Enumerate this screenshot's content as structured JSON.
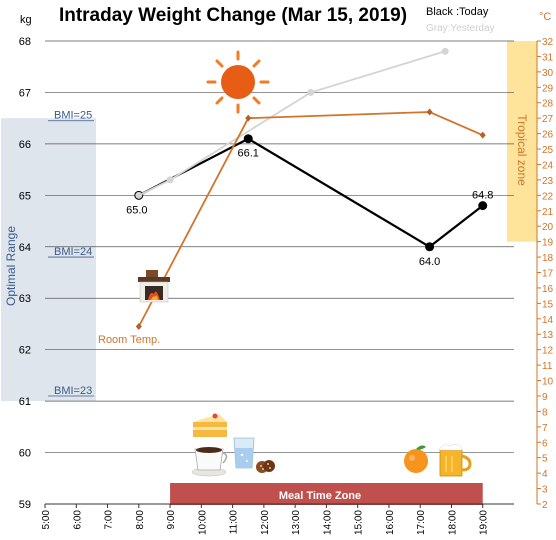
{
  "chart_data": {
    "type": "line",
    "title": "Intraday Weight Change (Mar 15, 2019)",
    "legend": {
      "today": "Black :Today",
      "yesterday": "Gray:Yesterday",
      "placement": "top-right"
    },
    "left_axis": {
      "unit": "kg",
      "range": [
        59,
        68
      ],
      "ticks": [
        "59",
        "60",
        "61",
        "62",
        "63",
        "64",
        "65",
        "66",
        "67",
        "68"
      ]
    },
    "right_axis": {
      "unit": "°C",
      "range": [
        2,
        32
      ],
      "ticks": [
        "2",
        "3",
        "4",
        "5",
        "6",
        "7",
        "8",
        "9",
        "10",
        "11",
        "12",
        "13",
        "14",
        "15",
        "16",
        "17",
        "18",
        "19",
        "20",
        "21",
        "22",
        "23",
        "24",
        "25",
        "26",
        "27",
        "28",
        "29",
        "30",
        "31",
        "32"
      ]
    },
    "x_axis": {
      "range": [
        5,
        20
      ],
      "ticks": [
        {
          "label": "5:00",
          "value": 5
        },
        {
          "label": "6:00",
          "value": 6
        },
        {
          "label": "7:00",
          "value": 7
        },
        {
          "label": "8:00",
          "value": 8
        },
        {
          "label": "9:00",
          "value": 9
        },
        {
          "label": "10:00",
          "value": 10
        },
        {
          "label": "11:00",
          "value": 11
        },
        {
          "label": "12:00",
          "value": 12
        },
        {
          "label": "13:00",
          "value": 13
        },
        {
          "label": "14:00",
          "value": 14
        },
        {
          "label": "15:00",
          "value": 15
        },
        {
          "label": "16:00",
          "value": 16
        },
        {
          "label": "17:00",
          "value": 17
        },
        {
          "label": "18:00",
          "value": 18
        },
        {
          "label": "19:00",
          "value": 19
        }
      ]
    },
    "grid": true,
    "series": [
      {
        "name": "Today",
        "axis": "left",
        "color": "#000000",
        "points": [
          {
            "x": 8.0,
            "y": 65.0,
            "label": "65.0"
          },
          {
            "x": 11.5,
            "y": 66.1,
            "label": "66.1"
          },
          {
            "x": 17.3,
            "y": 64.0,
            "label": "64.0"
          },
          {
            "x": 19.0,
            "y": 64.8,
            "label": "64.8"
          }
        ]
      },
      {
        "name": "Yesterday",
        "axis": "left",
        "color": "#d4d4d4",
        "points": [
          {
            "x": 8.0,
            "y": 65.0
          },
          {
            "x": 9.0,
            "y": 65.3
          },
          {
            "x": 13.5,
            "y": 67.0
          },
          {
            "x": 17.8,
            "y": 67.8
          }
        ]
      },
      {
        "name": "Room Temp.",
        "axis": "right",
        "color": "#d2742a",
        "points": [
          {
            "x": 8.0,
            "y": 13.5
          },
          {
            "x": 11.5,
            "y": 27.0
          },
          {
            "x": 17.3,
            "y": 27.4
          },
          {
            "x": 19.0,
            "y": 25.9
          }
        ]
      }
    ],
    "annotations": {
      "room_temp_label": "Room Temp.",
      "optimal_range": {
        "label": "Optimal Range",
        "y_range": [
          61,
          66.5
        ],
        "color": "#dfe5ec"
      },
      "bmi_lines": [
        {
          "label": "BMI=25",
          "y": 66.45
        },
        {
          "label": "BMI=24",
          "y": 63.8
        },
        {
          "label": "BMI=23",
          "y": 61.1
        }
      ],
      "tropical_zone": {
        "label": "Tropical zone",
        "temp_range": [
          19,
          32
        ],
        "color": "#fde49a"
      },
      "meal_time_zone": {
        "label": "Meal Time Zone",
        "x_range": [
          9,
          19
        ],
        "color": "#c0504d"
      },
      "icons": [
        "sun-icon",
        "fireplace-icon",
        "cake-icon",
        "coffee-icon",
        "water-glass-icon",
        "cookies-icon",
        "orange-icon",
        "beer-icon"
      ]
    }
  }
}
